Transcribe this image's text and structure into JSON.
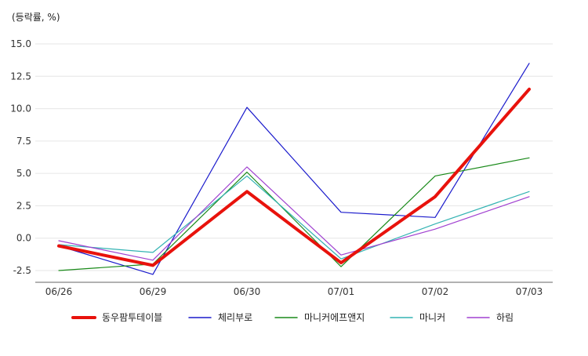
{
  "chart_data": {
    "type": "line",
    "title": "",
    "ylabel": "(등락률, %)",
    "xlabel": "",
    "categories": [
      "06/26",
      "06/29",
      "06/30",
      "07/01",
      "07/02",
      "07/03"
    ],
    "ylim": [
      -3.5,
      16
    ],
    "yticks": [
      15.0,
      12.5,
      10.0,
      7.5,
      5.0,
      2.5,
      0.0,
      -2.5
    ],
    "ytick_labels": [
      "15.0",
      "12.5",
      "10.0",
      "7.5",
      "5.0",
      "2.5",
      "0.0",
      "-2.5"
    ],
    "grid": true,
    "legend_position": "bottom",
    "series": [
      {
        "name": "동우팜투테이블",
        "color": "#e8120c",
        "width": 4,
        "values": [
          -0.6,
          -2.1,
          3.6,
          -1.9,
          3.2,
          11.5
        ]
      },
      {
        "name": "체리부로",
        "color": "#1a1acc",
        "width": 1.2,
        "values": [
          -0.6,
          -2.8,
          10.1,
          2.0,
          1.6,
          13.5
        ]
      },
      {
        "name": "마니커에프앤지",
        "color": "#1a8a1a",
        "width": 1.2,
        "values": [
          -2.5,
          -2.0,
          5.1,
          -2.2,
          4.8,
          6.2
        ]
      },
      {
        "name": "마니커",
        "color": "#33b3b3",
        "width": 1.2,
        "values": [
          -0.5,
          -1.1,
          4.8,
          -1.6,
          1.1,
          3.6
        ]
      },
      {
        "name": "하림",
        "color": "#a040d0",
        "width": 1.2,
        "values": [
          -0.2,
          -1.7,
          5.5,
          -1.3,
          0.7,
          3.2
        ]
      }
    ]
  }
}
